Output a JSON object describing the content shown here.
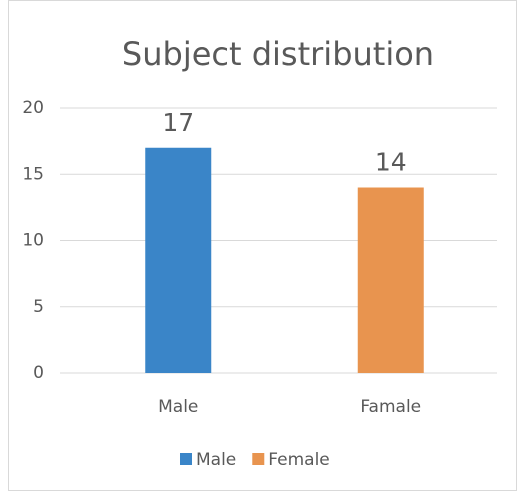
{
  "chart_data": {
    "type": "bar",
    "title": "Subject distribution",
    "categories": [
      "Male",
      "Famale"
    ],
    "series": [
      {
        "name": "Male",
        "color": "#3a85c8",
        "values": [
          17,
          null
        ]
      },
      {
        "name": "Female",
        "color": "#e8944f",
        "values": [
          null,
          14
        ]
      }
    ],
    "ylim": [
      0,
      20
    ],
    "yticks": [
      0,
      5,
      10,
      15,
      20
    ],
    "grid": true,
    "legend": "bottom"
  }
}
